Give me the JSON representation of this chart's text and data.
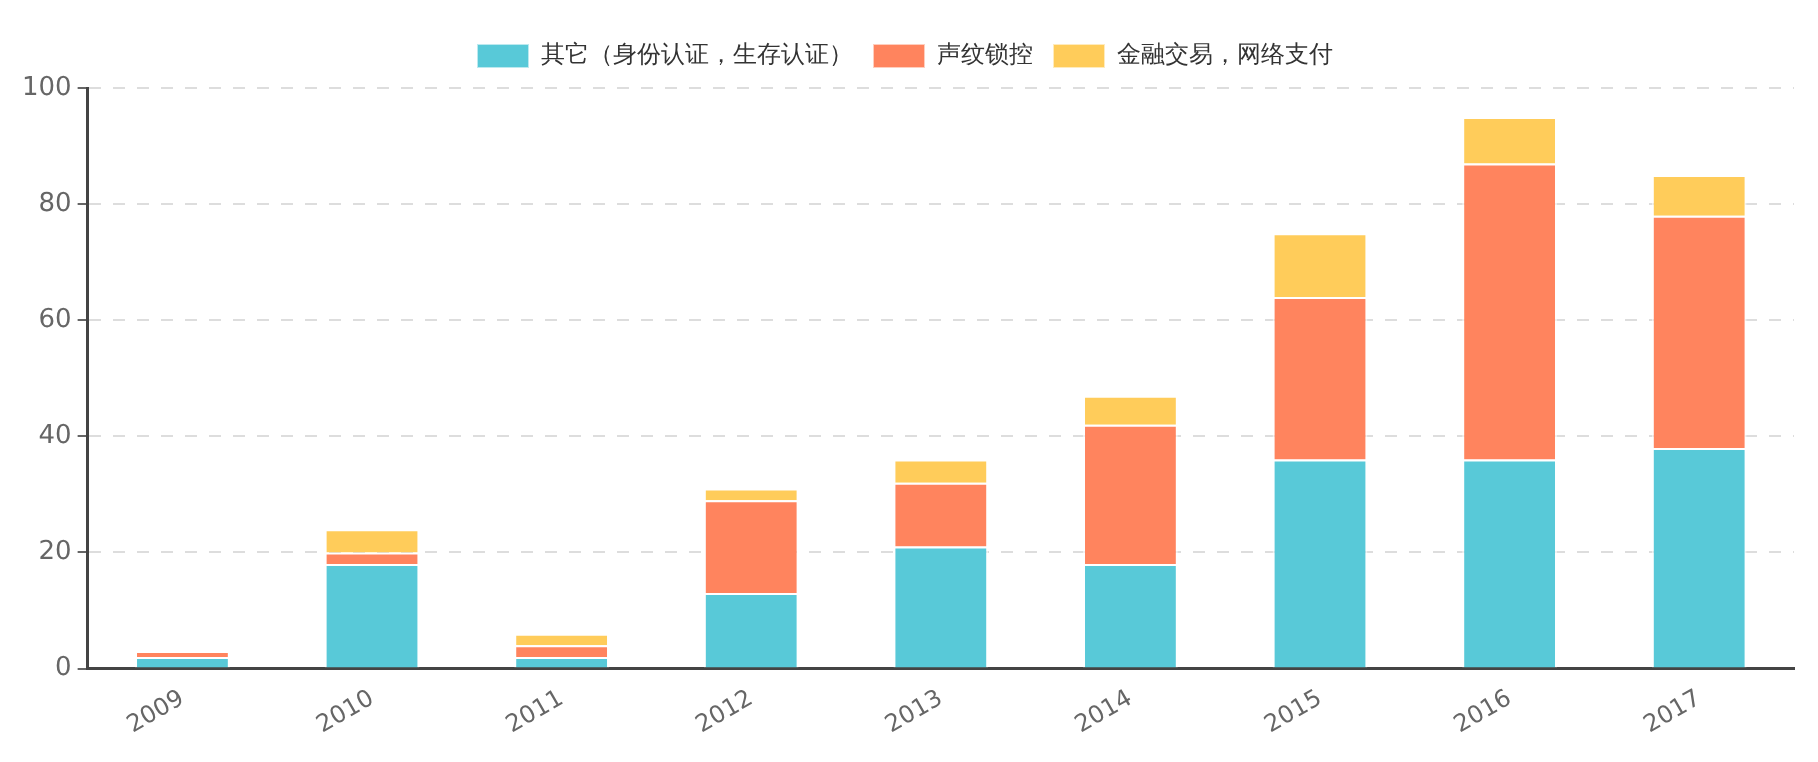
{
  "chart_data": {
    "type": "bar",
    "stacked": true,
    "categories": [
      "2009",
      "2010",
      "2011",
      "2012",
      "2013",
      "2014",
      "2015",
      "2016",
      "2017"
    ],
    "series": [
      {
        "name": "其它（身份认证，生存认证）",
        "color": "#58c9d8",
        "values": [
          2,
          18,
          2,
          13,
          21,
          18,
          36,
          36,
          38
        ]
      },
      {
        "name": "声纹锁控",
        "color": "#ff845e",
        "values": [
          1,
          2,
          2,
          16,
          11,
          24,
          28,
          51,
          40
        ]
      },
      {
        "name": "金融交易，网络支付",
        "color": "#ffcc5a",
        "values": [
          0,
          4,
          2,
          2,
          4,
          5,
          11,
          8,
          7
        ]
      }
    ],
    "ylim": [
      0,
      100
    ],
    "yticks": [
      0,
      20,
      40,
      60,
      80,
      100
    ],
    "grid": "y",
    "legend": "top"
  }
}
